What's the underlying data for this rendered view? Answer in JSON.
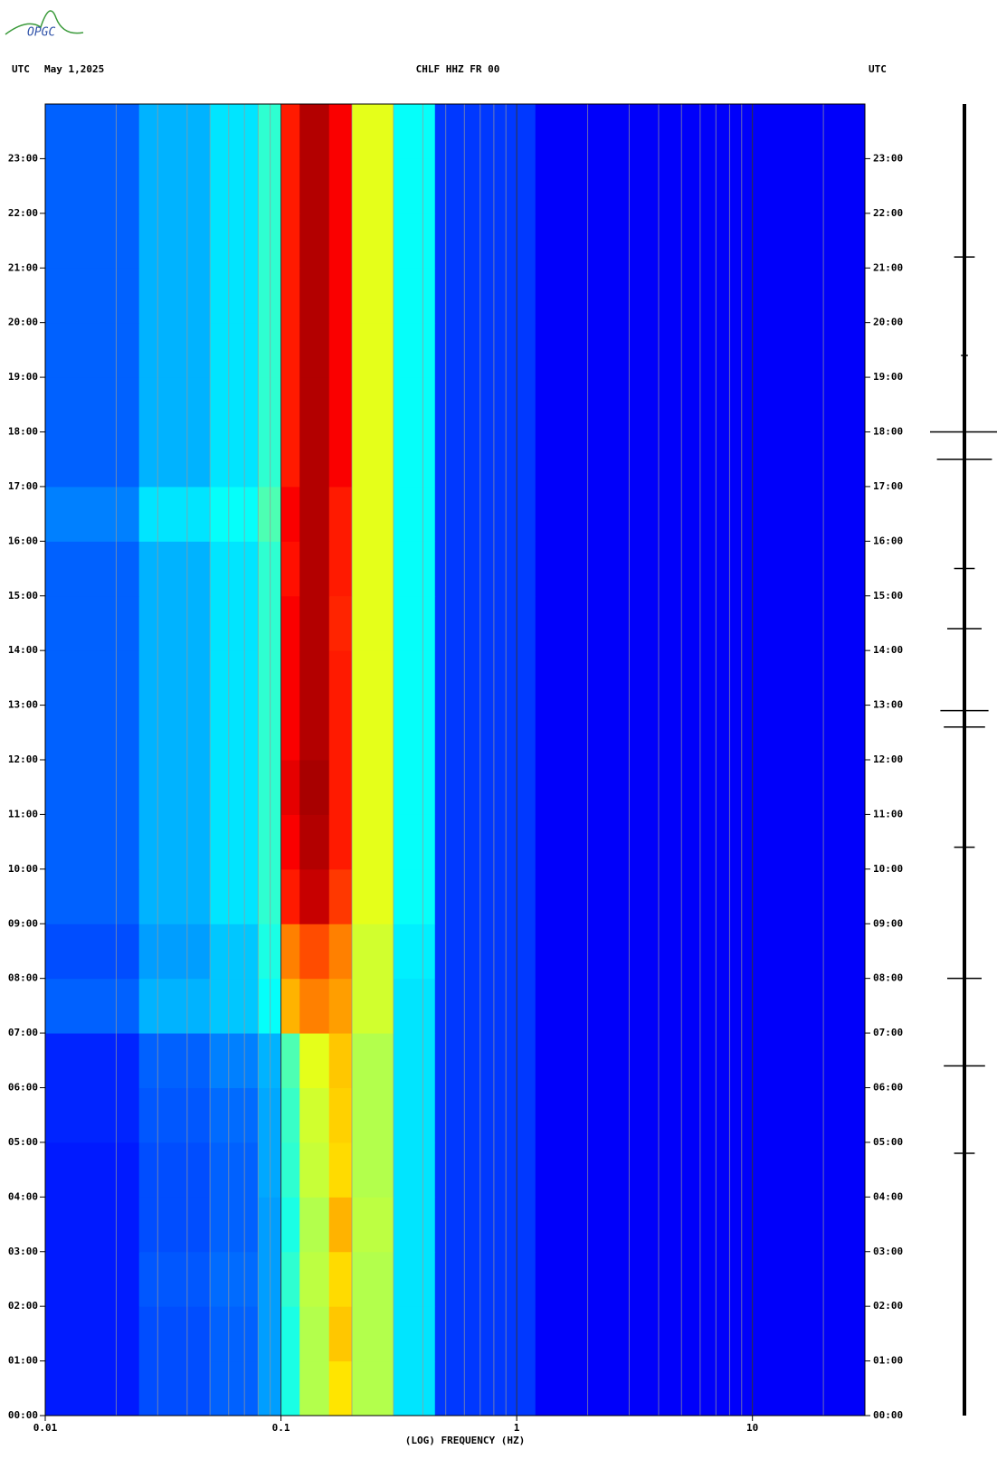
{
  "logo": "OPGC",
  "chart_data": {
    "type": "spectrogram",
    "title": "CHLF HHZ FR 00",
    "left_label": "UTC",
    "date": "May 1,2025",
    "right_label": "UTC",
    "xlabel": "(LOG) FREQUENCY (HZ)",
    "xscale": "log",
    "xlim": [
      0.01,
      30
    ],
    "xticks": [
      0.01,
      0.1,
      1,
      10
    ],
    "xminorticks": [
      0.02,
      0.03,
      0.04,
      0.05,
      0.06,
      0.07,
      0.08,
      0.09,
      0.2,
      0.3,
      0.4,
      0.5,
      0.6,
      0.7,
      0.8,
      0.9,
      2,
      3,
      4,
      5,
      6,
      7,
      8,
      9,
      20
    ],
    "ylim": [
      0,
      24
    ],
    "yticks": [
      {
        "value": 0,
        "label": "00:00"
      },
      {
        "value": 1,
        "label": "01:00"
      },
      {
        "value": 2,
        "label": "02:00"
      },
      {
        "value": 3,
        "label": "03:00"
      },
      {
        "value": 4,
        "label": "04:00"
      },
      {
        "value": 5,
        "label": "05:00"
      },
      {
        "value": 6,
        "label": "06:00"
      },
      {
        "value": 7,
        "label": "07:00"
      },
      {
        "value": 8,
        "label": "08:00"
      },
      {
        "value": 9,
        "label": "09:00"
      },
      {
        "value": 10,
        "label": "10:00"
      },
      {
        "value": 11,
        "label": "11:00"
      },
      {
        "value": 12,
        "label": "12:00"
      },
      {
        "value": 13,
        "label": "13:00"
      },
      {
        "value": 14,
        "label": "14:00"
      },
      {
        "value": 15,
        "label": "15:00"
      },
      {
        "value": 16,
        "label": "16:00"
      },
      {
        "value": 17,
        "label": "17:00"
      },
      {
        "value": 18,
        "label": "18:00"
      },
      {
        "value": 19,
        "label": "19:00"
      },
      {
        "value": 20,
        "label": "20:00"
      },
      {
        "value": 21,
        "label": "21:00"
      },
      {
        "value": 22,
        "label": "22:00"
      },
      {
        "value": 23,
        "label": "23:00"
      }
    ],
    "bins": [
      0.01,
      0.025,
      0.05,
      0.08,
      0.1,
      0.12,
      0.16,
      0.2,
      0.3,
      0.45,
      1.2,
      30
    ],
    "z": [
      [
        0.15,
        0.2,
        0.22,
        0.28,
        0.4,
        0.55,
        0.65,
        0.55,
        0.35,
        0.18,
        0.12
      ],
      [
        0.15,
        0.2,
        0.22,
        0.28,
        0.4,
        0.55,
        0.68,
        0.55,
        0.35,
        0.18,
        0.12
      ],
      [
        0.15,
        0.21,
        0.23,
        0.28,
        0.42,
        0.56,
        0.66,
        0.55,
        0.35,
        0.18,
        0.12
      ],
      [
        0.15,
        0.2,
        0.22,
        0.28,
        0.4,
        0.55,
        0.7,
        0.56,
        0.35,
        0.18,
        0.12
      ],
      [
        0.15,
        0.2,
        0.22,
        0.29,
        0.42,
        0.57,
        0.66,
        0.55,
        0.35,
        0.18,
        0.12
      ],
      [
        0.16,
        0.21,
        0.23,
        0.29,
        0.43,
        0.58,
        0.67,
        0.55,
        0.35,
        0.18,
        0.12
      ],
      [
        0.16,
        0.22,
        0.25,
        0.3,
        0.45,
        0.6,
        0.68,
        0.55,
        0.35,
        0.18,
        0.12
      ],
      [
        0.22,
        0.3,
        0.32,
        0.38,
        0.7,
        0.75,
        0.72,
        0.58,
        0.35,
        0.18,
        0.12
      ],
      [
        0.2,
        0.28,
        0.32,
        0.4,
        0.75,
        0.8,
        0.75,
        0.58,
        0.36,
        0.18,
        0.12
      ],
      [
        0.22,
        0.3,
        0.35,
        0.42,
        0.85,
        0.93,
        0.82,
        0.6,
        0.38,
        0.18,
        0.12
      ],
      [
        0.22,
        0.3,
        0.35,
        0.42,
        0.88,
        0.95,
        0.85,
        0.6,
        0.38,
        0.18,
        0.12
      ],
      [
        0.22,
        0.3,
        0.35,
        0.42,
        0.9,
        0.96,
        0.85,
        0.6,
        0.38,
        0.18,
        0.12
      ],
      [
        0.22,
        0.3,
        0.35,
        0.42,
        0.88,
        0.95,
        0.85,
        0.6,
        0.38,
        0.18,
        0.12
      ],
      [
        0.22,
        0.3,
        0.35,
        0.42,
        0.88,
        0.95,
        0.85,
        0.6,
        0.38,
        0.18,
        0.12
      ],
      [
        0.22,
        0.3,
        0.35,
        0.42,
        0.88,
        0.95,
        0.84,
        0.6,
        0.38,
        0.18,
        0.12
      ],
      [
        0.22,
        0.3,
        0.35,
        0.42,
        0.86,
        0.95,
        0.85,
        0.6,
        0.38,
        0.18,
        0.12
      ],
      [
        0.25,
        0.35,
        0.38,
        0.45,
        0.88,
        0.95,
        0.85,
        0.6,
        0.38,
        0.18,
        0.12
      ],
      [
        0.22,
        0.3,
        0.35,
        0.42,
        0.85,
        0.95,
        0.88,
        0.6,
        0.38,
        0.18,
        0.12
      ],
      [
        0.22,
        0.3,
        0.35,
        0.42,
        0.85,
        0.95,
        0.88,
        0.6,
        0.38,
        0.18,
        0.12
      ],
      [
        0.22,
        0.3,
        0.35,
        0.42,
        0.85,
        0.95,
        0.88,
        0.6,
        0.38,
        0.18,
        0.12
      ],
      [
        0.22,
        0.3,
        0.35,
        0.42,
        0.85,
        0.95,
        0.88,
        0.6,
        0.38,
        0.18,
        0.12
      ],
      [
        0.22,
        0.3,
        0.35,
        0.42,
        0.85,
        0.95,
        0.88,
        0.6,
        0.38,
        0.18,
        0.12
      ],
      [
        0.22,
        0.3,
        0.35,
        0.42,
        0.85,
        0.95,
        0.88,
        0.6,
        0.38,
        0.18,
        0.12
      ],
      [
        0.22,
        0.3,
        0.35,
        0.42,
        0.85,
        0.95,
        0.88,
        0.6,
        0.38,
        0.18,
        0.12
      ]
    ],
    "trace": {
      "events": [
        {
          "t": 21.2,
          "amp": 0.3
        },
        {
          "t": 19.4,
          "amp": 0.1
        },
        {
          "t": 18.0,
          "amp": 1.0
        },
        {
          "t": 17.5,
          "amp": 0.8
        },
        {
          "t": 15.5,
          "amp": 0.3
        },
        {
          "t": 14.4,
          "amp": 0.5
        },
        {
          "t": 12.9,
          "amp": 0.7
        },
        {
          "t": 12.6,
          "amp": 0.6
        },
        {
          "t": 10.4,
          "amp": 0.3
        },
        {
          "t": 8.0,
          "amp": 0.5
        },
        {
          "t": 6.4,
          "amp": 0.6
        },
        {
          "t": 4.8,
          "amp": 0.3
        }
      ]
    }
  }
}
